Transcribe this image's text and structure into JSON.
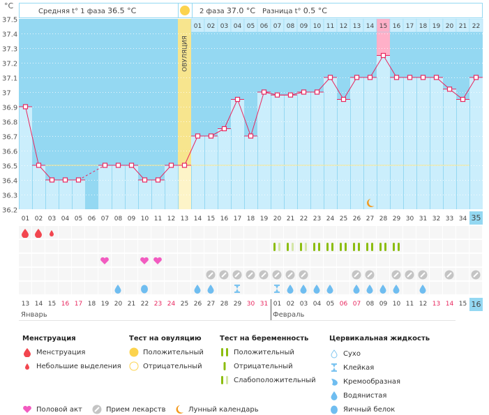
{
  "header": {
    "unit": "°C",
    "phase1_label": "Средняя t° 1 фаза",
    "phase1_value": "36.5 °C",
    "phase2_label": "2 фаза",
    "phase2_value": "37.0 °C",
    "diff_label": "Разница t°",
    "diff_value": "0.5 °C",
    "ovulation_label": "ОВУЛЯЦИЯ"
  },
  "colors": {
    "background_high": "#94d8f2",
    "background_low": "#cbeefc",
    "line": "#e8265e",
    "ovulation": "#f7e58e",
    "highlight": "#ffb0c8",
    "coverline": "#f7e58e"
  },
  "chart_data": {
    "type": "line",
    "title": "",
    "ylabel": "°C",
    "ylim": [
      36.2,
      37.5
    ],
    "yticks": [
      "37.5",
      "37.4",
      "37.3",
      "37.2",
      "37.1",
      "37",
      "36.9",
      "36.8",
      "36.7",
      "36.6",
      "36.5",
      "36.4",
      "36.3",
      "36.2"
    ],
    "x": [
      "01",
      "02",
      "03",
      "04",
      "05",
      "06",
      "07",
      "08",
      "09",
      "10",
      "11",
      "12",
      "13",
      "14",
      "15",
      "16",
      "17",
      "18",
      "19",
      "20",
      "21",
      "22",
      "23",
      "24",
      "25",
      "26",
      "27",
      "28",
      "29",
      "30",
      "31",
      "32",
      "33",
      "34",
      "35"
    ],
    "series": [
      {
        "name": "Базальная температура",
        "values": [
          36.9,
          36.5,
          36.4,
          36.4,
          36.4,
          null,
          36.5,
          36.5,
          36.5,
          36.4,
          36.4,
          36.5,
          36.5,
          36.7,
          36.7,
          36.75,
          36.95,
          36.7,
          37.0,
          36.98,
          36.98,
          37.0,
          37.0,
          37.1,
          36.95,
          37.1,
          37.1,
          37.25,
          37.1,
          37.1,
          37.1,
          37.1,
          37.02,
          36.95,
          37.1
        ]
      }
    ],
    "coverline": 36.5,
    "ovulation_day": 13,
    "phase2_labels": [
      "01",
      "02",
      "03",
      "04",
      "05",
      "06",
      "07",
      "08",
      "09",
      "10",
      "11",
      "12",
      "13",
      "14",
      "15",
      "16",
      "17",
      "18",
      "19",
      "20",
      "21",
      "22"
    ],
    "highlight_phase2_day": "15",
    "current_day": "35",
    "moon_day": 27
  },
  "dates": {
    "days": [
      "13",
      "14",
      "15",
      "16",
      "17",
      "18",
      "19",
      "20",
      "21",
      "22",
      "23",
      "24",
      "25",
      "26",
      "27",
      "28",
      "29",
      "30",
      "31",
      "01",
      "02",
      "03",
      "04",
      "05",
      "06",
      "07",
      "08",
      "09",
      "10",
      "11",
      "12",
      "13",
      "14",
      "15",
      "16"
    ],
    "weekend_idx": [
      3,
      4,
      10,
      11,
      17,
      18,
      24,
      25,
      31,
      32
    ],
    "today_idx": 34,
    "months": [
      {
        "label": "Январь",
        "start": 0
      },
      {
        "label": "Февраль",
        "start": 19
      }
    ]
  },
  "rows": {
    "menstruation": {
      "0": "heavy",
      "1": "heavy",
      "2": "light"
    },
    "pregnancy_test": {
      "19": "weak",
      "20": "weak",
      "21": "weak",
      "22": "pos",
      "23": "pos",
      "24": "pos",
      "25": "pos",
      "26": "pos",
      "27": "pos",
      "28": "pos"
    },
    "intercourse": [
      6,
      9,
      10
    ],
    "medication": [
      14,
      15,
      16,
      17,
      18,
      19,
      20,
      21,
      25,
      26,
      28,
      29,
      30,
      32,
      34
    ],
    "fluid": {
      "7": "watery",
      "9": "egg",
      "13": "watery",
      "14": "watery",
      "16": "sticky",
      "19": "sticky",
      "20": "watery",
      "21": "watery",
      "22": "watery",
      "23": "watery",
      "25": "watery",
      "26": "watery",
      "27": "watery",
      "28": "watery",
      "30": "watery"
    }
  },
  "legend": {
    "menstruation": {
      "title": "Менструация",
      "items": [
        "Менструация",
        "Небольшие выделения"
      ]
    },
    "ovulation_test": {
      "title": "Тест на овуляцию",
      "items": [
        "Положительный",
        "Отрицательный"
      ]
    },
    "pregnancy_test": {
      "title": "Тест на беременность",
      "items": [
        "Положительный",
        "Отрицательный",
        "Слабоположительный"
      ]
    },
    "cervical_fluid": {
      "title": "Цервикальная жидкость",
      "items": [
        "Сухо",
        "Клейкая",
        "Кремообразная",
        "Водянистая",
        "Яичный белок"
      ]
    },
    "other": [
      "Половой акт",
      "Прием лекарств",
      "Лунный календарь"
    ]
  }
}
